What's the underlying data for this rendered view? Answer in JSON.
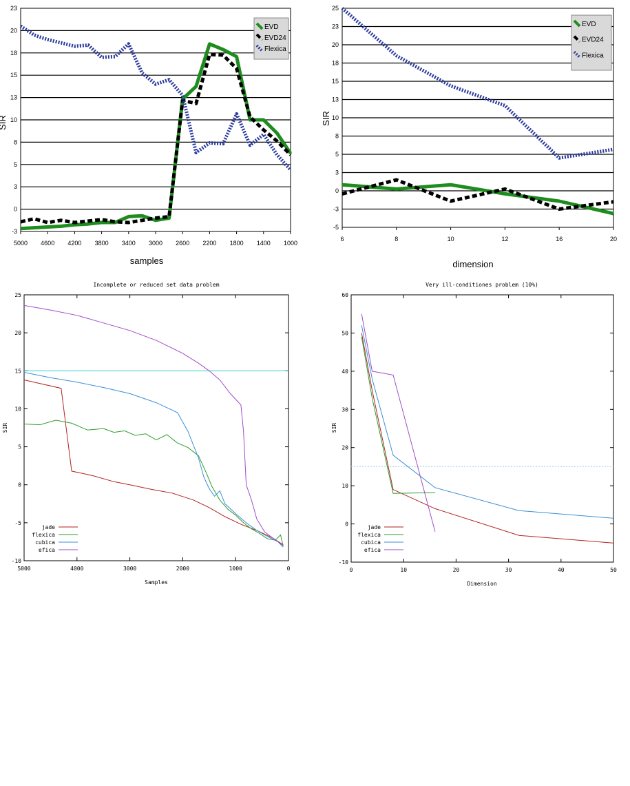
{
  "chart_data": [
    {
      "type": "line",
      "title": "",
      "xlabel": "samples",
      "ylabel": "SIR",
      "x_ticks": [
        "5000",
        "4600",
        "4200",
        "3800",
        "3400",
        "3000",
        "2600",
        "2200",
        "1800",
        "1400",
        "1000"
      ],
      "y_ticks": [
        "23",
        "20",
        "18",
        "15",
        "13",
        "10",
        "8",
        "5",
        "3",
        "0",
        "-3"
      ],
      "xlim": [
        5000,
        1000
      ],
      "ylim": [
        -3,
        23
      ],
      "grid": "horizontal",
      "legend_position": "top-right",
      "x": [
        5000,
        4800,
        4600,
        4400,
        4200,
        4000,
        3800,
        3600,
        3400,
        3200,
        3000,
        2800,
        2600,
        2400,
        2200,
        2000,
        1800,
        1600,
        1400,
        1200,
        1000
      ],
      "series": [
        {
          "name": "EVD",
          "color": "#1e8c1e",
          "style": "solid",
          "values": [
            -2.6,
            -2.5,
            -2.4,
            -2.3,
            -2.1,
            -2.0,
            -1.8,
            -1.8,
            -1.0,
            -0.9,
            -1.5,
            -1.2,
            12.8,
            14.0,
            18.8,
            18.3,
            17.5,
            10.0,
            10.0,
            8.8,
            6.5
          ]
        },
        {
          "name": "EVD24",
          "color": "#000000",
          "style": "dashed",
          "values": [
            -1.7,
            -1.3,
            -1.8,
            -1.5,
            -1.8,
            -1.6,
            -1.4,
            -1.7,
            -1.8,
            -1.5,
            -1.2,
            -1.0,
            12.6,
            12.2,
            17.8,
            17.7,
            15.9,
            10.4,
            9.1,
            8.1,
            6.3
          ]
        },
        {
          "name": "Flexica",
          "color": "#2a3a9c",
          "style": "dotted",
          "values": [
            20.6,
            19.6,
            19.2,
            18.9,
            18.6,
            18.7,
            17.4,
            17.5,
            18.8,
            15.3,
            14.2,
            14.6,
            13.2,
            6.6,
            7.9,
            7.8,
            10.8,
            7.6,
            8.7,
            6.3,
            4.5
          ]
        }
      ]
    },
    {
      "type": "line",
      "title": "",
      "xlabel": "dimension",
      "ylabel": "SIR",
      "x_ticks": [
        "6",
        "8",
        "10",
        "12",
        "16",
        "20"
      ],
      "y_ticks": [
        "25",
        "23",
        "20",
        "18",
        "15",
        "13",
        "10",
        "8",
        "5",
        "3",
        "0",
        "-3",
        "-5"
      ],
      "xlim": [
        6,
        20
      ],
      "ylim": [
        -5,
        25
      ],
      "grid": "horizontal",
      "legend_position": "top-right",
      "x": [
        6,
        8,
        10,
        12,
        16,
        20
      ],
      "series": [
        {
          "name": "EVD",
          "color": "#1e8c1e",
          "style": "solid",
          "values": [
            1.0,
            0.3,
            1.0,
            -0.5,
            -1.7,
            -3.5
          ]
        },
        {
          "name": "EVD24",
          "color": "#000000",
          "style": "dashed",
          "values": [
            -0.5,
            1.8,
            -1.7,
            0.3,
            -3.0,
            -1.8
          ]
        },
        {
          "name": "Flexica",
          "color": "#2a3a9c",
          "style": "dotted",
          "values": [
            25.0,
            18.8,
            14.5,
            12.0,
            4.6,
            5.8
          ]
        }
      ]
    },
    {
      "type": "line",
      "title": "Incomplete or reduced set data problem",
      "xlabel": "Samples",
      "ylabel": "SIR",
      "x_ticks": [
        "5000",
        "4000",
        "3000",
        "2000",
        "1000",
        "0"
      ],
      "y_ticks": [
        "25",
        "20",
        "15",
        "10",
        "5",
        "0",
        "-5",
        "-10"
      ],
      "xlim": [
        5000,
        0
      ],
      "ylim": [
        -10,
        25
      ],
      "grid": "none",
      "legend_position": "bottom-left",
      "reference_line": {
        "y": 15,
        "color": "#33cccc"
      },
      "series": [
        {
          "name": "jade",
          "color": "#b22222",
          "x": [
            5000,
            4300,
            4100,
            3700,
            3300,
            3000,
            2600,
            2200,
            1800,
            1500,
            1200,
            900,
            600,
            300,
            100
          ],
          "values": [
            13.8,
            12.7,
            1.8,
            1.2,
            0.4,
            0.0,
            -0.6,
            -1.1,
            -2.0,
            -3.0,
            -4.2,
            -5.2,
            -6.0,
            -7.0,
            -7.9
          ]
        },
        {
          "name": "flexica",
          "color": "#2e9e2e",
          "x": [
            5000,
            4700,
            4400,
            4100,
            3800,
            3500,
            3300,
            3100,
            2900,
            2700,
            2500,
            2300,
            2100,
            1900,
            1700,
            1550,
            1450,
            1300,
            1150,
            1000,
            850,
            700,
            550,
            400,
            250,
            150,
            100
          ],
          "values": [
            8.0,
            7.9,
            8.5,
            8.1,
            7.2,
            7.4,
            6.9,
            7.1,
            6.5,
            6.7,
            5.9,
            6.6,
            5.5,
            4.9,
            3.8,
            1.5,
            -0.2,
            -2.0,
            -3.2,
            -4.0,
            -5.0,
            -5.8,
            -6.4,
            -7.1,
            -7.3,
            -6.6,
            -8.1
          ]
        },
        {
          "name": "cubica",
          "color": "#3b8fd6",
          "x": [
            5000,
            4500,
            4000,
            3500,
            3000,
            2500,
            2100,
            1900,
            1700,
            1600,
            1500,
            1400,
            1300,
            1200,
            1000,
            800,
            600,
            400,
            200,
            100
          ],
          "values": [
            14.8,
            14.1,
            13.5,
            12.8,
            12.0,
            10.8,
            9.5,
            7.0,
            3.5,
            1.0,
            -0.5,
            -1.5,
            -0.8,
            -2.5,
            -3.8,
            -5.0,
            -6.0,
            -6.8,
            -7.5,
            -8.2
          ]
        },
        {
          "name": "efica",
          "color": "#a24bc9",
          "x": [
            5000,
            4500,
            4000,
            3500,
            3000,
            2500,
            2000,
            1700,
            1500,
            1300,
            1100,
            900,
            850,
            800,
            700,
            600,
            450,
            300,
            200,
            100
          ],
          "values": [
            23.6,
            23.0,
            22.3,
            21.3,
            20.3,
            19.0,
            17.3,
            16.0,
            15.0,
            13.8,
            12.0,
            10.5,
            7.0,
            0.0,
            -2.0,
            -4.5,
            -6.2,
            -7.0,
            -7.5,
            -8.0
          ]
        }
      ]
    },
    {
      "type": "line",
      "title": "Very ill-conditiones problem (10%)",
      "xlabel": "Dimension",
      "ylabel": "SIR",
      "x_ticks": [
        "0",
        "10",
        "20",
        "30",
        "40",
        "50"
      ],
      "y_ticks": [
        "60",
        "50",
        "40",
        "30",
        "20",
        "10",
        "0",
        "-10"
      ],
      "xlim": [
        0,
        50
      ],
      "ylim": [
        -10,
        60
      ],
      "grid": "none",
      "legend_position": "bottom-left",
      "reference_line": {
        "y": 15,
        "color": "#9fd4e8",
        "style": "dotted"
      },
      "series": [
        {
          "name": "jade",
          "color": "#b22222",
          "x": [
            2,
            4,
            8,
            16,
            32,
            50
          ],
          "values": [
            50.0,
            35.0,
            9.0,
            4.0,
            -3.0,
            -5.0
          ]
        },
        {
          "name": "flexica",
          "color": "#2e9e2e",
          "x": [
            2,
            4,
            8,
            16
          ],
          "values": [
            49.0,
            33.0,
            8.0,
            8.2
          ]
        },
        {
          "name": "cubica",
          "color": "#3b8fd6",
          "x": [
            2,
            4,
            8,
            16,
            32,
            50
          ],
          "values": [
            52.0,
            38.0,
            18.0,
            9.5,
            3.5,
            1.5
          ]
        },
        {
          "name": "efica",
          "color": "#a24bc9",
          "x": [
            2,
            4,
            8,
            16
          ],
          "values": [
            55.0,
            40.0,
            39.0,
            -2.0
          ]
        }
      ]
    }
  ]
}
